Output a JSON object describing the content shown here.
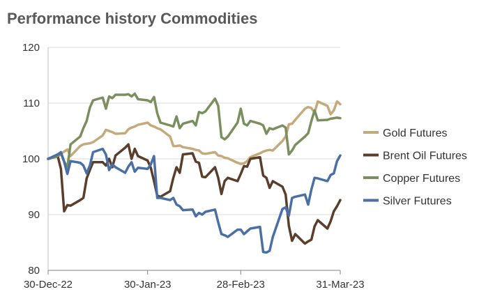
{
  "chart_data": {
    "type": "line",
    "title": "Performance history Commodities",
    "xlabel": "",
    "ylabel": "",
    "ylim": [
      80,
      120
    ],
    "yticks": [
      "80",
      "90",
      "100",
      "110",
      "120"
    ],
    "xlim": [
      "2022-12-30",
      "2023-03-31"
    ],
    "xticks": [
      {
        "date": "2022-12-30",
        "label": "30-Dec-22"
      },
      {
        "date": "2023-01-30",
        "label": "30-Jan-23"
      },
      {
        "date": "2023-02-28",
        "label": "28-Feb-23"
      },
      {
        "date": "2023-03-31",
        "label": "31-Mar-23"
      }
    ],
    "grid": "horizontal",
    "legend_position": "right",
    "series": [
      {
        "name": "Gold Futures",
        "color": "#c4aa7a",
        "points": [
          [
            "2022-12-30",
            100.0
          ],
          [
            "2023-01-02",
            100.4
          ],
          [
            "2023-01-03",
            100.9
          ],
          [
            "2023-01-04",
            101.3
          ],
          [
            "2023-01-05",
            101.7
          ],
          [
            "2023-01-06",
            100.5
          ],
          [
            "2023-01-09",
            102.3
          ],
          [
            "2023-01-10",
            102.6
          ],
          [
            "2023-01-11",
            102.7
          ],
          [
            "2023-01-12",
            102.8
          ],
          [
            "2023-01-13",
            103.0
          ],
          [
            "2023-01-16",
            104.2
          ],
          [
            "2023-01-17",
            105.2
          ],
          [
            "2023-01-18",
            105.0
          ],
          [
            "2023-01-19",
            104.8
          ],
          [
            "2023-01-20",
            104.5
          ],
          [
            "2023-01-23",
            104.6
          ],
          [
            "2023-01-24",
            105.3
          ],
          [
            "2023-01-25",
            105.6
          ],
          [
            "2023-01-26",
            105.8
          ],
          [
            "2023-01-27",
            106.1
          ],
          [
            "2023-01-30",
            106.5
          ],
          [
            "2023-01-31",
            106.0
          ],
          [
            "2023-02-01",
            105.8
          ],
          [
            "2023-02-02",
            105.5
          ],
          [
            "2023-02-03",
            105.3
          ],
          [
            "2023-02-06",
            104.0
          ],
          [
            "2023-02-07",
            102.3
          ],
          [
            "2023-02-08",
            102.3
          ],
          [
            "2023-02-09",
            102.4
          ],
          [
            "2023-02-10",
            102.1
          ],
          [
            "2023-02-13",
            101.8
          ],
          [
            "2023-02-14",
            101.6
          ],
          [
            "2023-02-15",
            101.5
          ],
          [
            "2023-02-16",
            101.0
          ],
          [
            "2023-02-17",
            100.9
          ],
          [
            "2023-02-20",
            101.2
          ],
          [
            "2023-02-21",
            100.6
          ],
          [
            "2023-02-22",
            100.5
          ],
          [
            "2023-02-23",
            100.2
          ],
          [
            "2023-02-24",
            100.1
          ],
          [
            "2023-02-27",
            99.3
          ],
          [
            "2023-02-28",
            99.1
          ],
          [
            "2023-03-01",
            99.2
          ],
          [
            "2023-03-02",
            99.6
          ],
          [
            "2023-03-03",
            100.3
          ],
          [
            "2023-03-06",
            101.0
          ],
          [
            "2023-03-07",
            101.3
          ],
          [
            "2023-03-08",
            101.5
          ],
          [
            "2023-03-09",
            101.6
          ],
          [
            "2023-03-10",
            101.5
          ],
          [
            "2023-03-13",
            103.2
          ],
          [
            "2023-03-14",
            104.0
          ],
          [
            "2023-03-15",
            106.2
          ],
          [
            "2023-03-16",
            106.3
          ],
          [
            "2023-03-17",
            107.0
          ],
          [
            "2023-03-20",
            109.0
          ],
          [
            "2023-03-21",
            109.3
          ],
          [
            "2023-03-22",
            109.1
          ],
          [
            "2023-03-23",
            108.3
          ],
          [
            "2023-03-24",
            110.3
          ],
          [
            "2023-03-27",
            109.5
          ],
          [
            "2023-03-28",
            108.0
          ],
          [
            "2023-03-29",
            108.7
          ],
          [
            "2023-03-30",
            110.3
          ],
          [
            "2023-03-31",
            109.8
          ]
        ]
      },
      {
        "name": "Brent Oil Futures",
        "color": "#5a3e2b",
        "points": [
          [
            "2022-12-30",
            100.0
          ],
          [
            "2023-01-02",
            100.5
          ],
          [
            "2023-01-03",
            98.2
          ],
          [
            "2023-01-04",
            90.6
          ],
          [
            "2023-01-05",
            91.7
          ],
          [
            "2023-01-06",
            91.6
          ],
          [
            "2023-01-09",
            92.6
          ],
          [
            "2023-01-10",
            93.0
          ],
          [
            "2023-01-11",
            96.5
          ],
          [
            "2023-01-12",
            98.0
          ],
          [
            "2023-01-13",
            99.4
          ],
          [
            "2023-01-16",
            99.4
          ],
          [
            "2023-01-17",
            98.8
          ],
          [
            "2023-01-18",
            100.0
          ],
          [
            "2023-01-19",
            98.5
          ],
          [
            "2023-01-20",
            100.6
          ],
          [
            "2023-01-23",
            102.0
          ],
          [
            "2023-01-24",
            102.6
          ],
          [
            "2023-01-25",
            100.0
          ],
          [
            "2023-01-26",
            101.8
          ],
          [
            "2023-01-27",
            100.5
          ],
          [
            "2023-01-30",
            99.7
          ],
          [
            "2023-01-31",
            98.4
          ],
          [
            "2023-02-01",
            96.0
          ],
          [
            "2023-02-02",
            93.4
          ],
          [
            "2023-02-03",
            93.2
          ],
          [
            "2023-02-06",
            94.2
          ],
          [
            "2023-02-07",
            96.6
          ],
          [
            "2023-02-08",
            98.5
          ],
          [
            "2023-02-09",
            97.5
          ],
          [
            "2023-02-10",
            100.8
          ],
          [
            "2023-02-13",
            101.0
          ],
          [
            "2023-02-14",
            99.5
          ],
          [
            "2023-02-15",
            99.3
          ],
          [
            "2023-02-16",
            96.8
          ],
          [
            "2023-02-17",
            96.7
          ],
          [
            "2023-02-20",
            98.5
          ],
          [
            "2023-02-21",
            96.6
          ],
          [
            "2023-02-22",
            93.7
          ],
          [
            "2023-02-23",
            96.0
          ],
          [
            "2023-02-24",
            96.6
          ],
          [
            "2023-02-27",
            96.0
          ],
          [
            "2023-02-28",
            97.3
          ],
          [
            "2023-03-01",
            98.7
          ],
          [
            "2023-03-02",
            98.6
          ],
          [
            "2023-03-03",
            100.0
          ],
          [
            "2023-03-06",
            100.3
          ],
          [
            "2023-03-07",
            97.0
          ],
          [
            "2023-03-08",
            96.6
          ],
          [
            "2023-03-09",
            94.8
          ],
          [
            "2023-03-10",
            96.0
          ],
          [
            "2023-03-13",
            95.0
          ],
          [
            "2023-03-14",
            93.6
          ],
          [
            "2023-03-15",
            88.0
          ],
          [
            "2023-03-16",
            85.3
          ],
          [
            "2023-03-17",
            86.5
          ],
          [
            "2023-03-20",
            84.8
          ],
          [
            "2023-03-21",
            85.2
          ],
          [
            "2023-03-22",
            85.5
          ],
          [
            "2023-03-23",
            87.9
          ],
          [
            "2023-03-24",
            89.0
          ],
          [
            "2023-03-27",
            87.5
          ],
          [
            "2023-03-28",
            88.8
          ],
          [
            "2023-03-29",
            90.6
          ],
          [
            "2023-03-30",
            91.5
          ],
          [
            "2023-03-31",
            92.6
          ]
        ]
      },
      {
        "name": "Copper Futures",
        "color": "#7b8f5e",
        "points": [
          [
            "2022-12-30",
            100.0
          ],
          [
            "2023-01-02",
            100.5
          ],
          [
            "2023-01-03",
            101.0
          ],
          [
            "2023-01-04",
            99.5
          ],
          [
            "2023-01-05",
            98.5
          ],
          [
            "2023-01-06",
            102.6
          ],
          [
            "2023-01-09",
            104.0
          ],
          [
            "2023-01-10",
            105.5
          ],
          [
            "2023-01-11",
            106.8
          ],
          [
            "2023-01-12",
            109.2
          ],
          [
            "2023-01-13",
            110.5
          ],
          [
            "2023-01-16",
            111.0
          ],
          [
            "2023-01-17",
            109.0
          ],
          [
            "2023-01-18",
            111.2
          ],
          [
            "2023-01-19",
            110.9
          ],
          [
            "2023-01-20",
            111.5
          ],
          [
            "2023-01-23",
            111.5
          ],
          [
            "2023-01-24",
            111.6
          ],
          [
            "2023-01-25",
            111.2
          ],
          [
            "2023-01-26",
            111.7
          ],
          [
            "2023-01-27",
            110.7
          ],
          [
            "2023-01-30",
            110.5
          ],
          [
            "2023-01-31",
            110.2
          ],
          [
            "2023-02-01",
            111.1
          ],
          [
            "2023-02-02",
            108.2
          ],
          [
            "2023-02-03",
            106.5
          ],
          [
            "2023-02-06",
            106.0
          ],
          [
            "2023-02-07",
            105.8
          ],
          [
            "2023-02-08",
            107.6
          ],
          [
            "2023-02-09",
            105.5
          ],
          [
            "2023-02-10",
            106.3
          ],
          [
            "2023-02-13",
            106.8
          ],
          [
            "2023-02-14",
            106.0
          ],
          [
            "2023-02-15",
            108.4
          ],
          [
            "2023-02-16",
            108.2
          ],
          [
            "2023-02-17",
            108.5
          ],
          [
            "2023-02-20",
            110.8
          ],
          [
            "2023-02-21",
            109.5
          ],
          [
            "2023-02-22",
            103.9
          ],
          [
            "2023-02-23",
            103.5
          ],
          [
            "2023-02-24",
            104.0
          ],
          [
            "2023-02-27",
            106.5
          ],
          [
            "2023-02-28",
            109.0
          ],
          [
            "2023-03-01",
            106.3
          ],
          [
            "2023-03-02",
            106.0
          ],
          [
            "2023-03-03",
            106.8
          ],
          [
            "2023-03-06",
            106.3
          ],
          [
            "2023-03-07",
            106.0
          ],
          [
            "2023-03-08",
            104.5
          ],
          [
            "2023-03-09",
            105.5
          ],
          [
            "2023-03-10",
            105.3
          ],
          [
            "2023-03-13",
            106.0
          ],
          [
            "2023-03-14",
            105.6
          ],
          [
            "2023-03-15",
            100.8
          ],
          [
            "2023-03-16",
            101.5
          ],
          [
            "2023-03-17",
            102.5
          ],
          [
            "2023-03-20",
            104.0
          ],
          [
            "2023-03-21",
            104.6
          ],
          [
            "2023-03-22",
            106.8
          ],
          [
            "2023-03-23",
            108.7
          ],
          [
            "2023-03-24",
            106.9
          ],
          [
            "2023-03-27",
            107.0
          ],
          [
            "2023-03-28",
            107.2
          ],
          [
            "2023-03-29",
            107.3
          ],
          [
            "2023-03-30",
            107.4
          ],
          [
            "2023-03-31",
            107.3
          ]
        ]
      },
      {
        "name": "Silver Futures",
        "color": "#4a6fa5",
        "points": [
          [
            "2022-12-30",
            100.0
          ],
          [
            "2023-01-02",
            100.8
          ],
          [
            "2023-01-03",
            101.2
          ],
          [
            "2023-01-04",
            99.5
          ],
          [
            "2023-01-05",
            97.3
          ],
          [
            "2023-01-06",
            99.6
          ],
          [
            "2023-01-09",
            99.3
          ],
          [
            "2023-01-10",
            98.8
          ],
          [
            "2023-01-11",
            97.4
          ],
          [
            "2023-01-12",
            98.8
          ],
          [
            "2023-01-13",
            101.2
          ],
          [
            "2023-01-16",
            101.8
          ],
          [
            "2023-01-17",
            100.8
          ],
          [
            "2023-01-18",
            98.0
          ],
          [
            "2023-01-19",
            99.0
          ],
          [
            "2023-01-20",
            98.5
          ],
          [
            "2023-01-23",
            97.5
          ],
          [
            "2023-01-24",
            98.6
          ],
          [
            "2023-01-25",
            99.4
          ],
          [
            "2023-01-26",
            97.7
          ],
          [
            "2023-01-27",
            98.4
          ],
          [
            "2023-01-30",
            98.2
          ],
          [
            "2023-01-31",
            99.0
          ],
          [
            "2023-02-01",
            100.5
          ],
          [
            "2023-02-02",
            93.0
          ],
          [
            "2023-02-03",
            93.0
          ],
          [
            "2023-02-06",
            92.6
          ],
          [
            "2023-02-07",
            93.0
          ],
          [
            "2023-02-08",
            91.8
          ],
          [
            "2023-02-09",
            91.5
          ],
          [
            "2023-02-10",
            90.8
          ],
          [
            "2023-02-13",
            90.9
          ],
          [
            "2023-02-14",
            89.7
          ],
          [
            "2023-02-15",
            90.3
          ],
          [
            "2023-02-16",
            90.0
          ],
          [
            "2023-02-17",
            90.5
          ],
          [
            "2023-02-20",
            90.9
          ],
          [
            "2023-02-21",
            88.6
          ],
          [
            "2023-02-22",
            86.5
          ],
          [
            "2023-02-23",
            86.3
          ],
          [
            "2023-02-24",
            86.0
          ],
          [
            "2023-02-27",
            87.3
          ],
          [
            "2023-02-28",
            87.3
          ],
          [
            "2023-03-01",
            86.5
          ],
          [
            "2023-03-02",
            87.0
          ],
          [
            "2023-03-03",
            87.5
          ],
          [
            "2023-03-06",
            87.8
          ],
          [
            "2023-03-07",
            83.3
          ],
          [
            "2023-03-08",
            83.2
          ],
          [
            "2023-03-09",
            83.5
          ],
          [
            "2023-03-10",
            86.0
          ],
          [
            "2023-03-13",
            91.0
          ],
          [
            "2023-03-14",
            91.3
          ],
          [
            "2023-03-15",
            89.8
          ],
          [
            "2023-03-16",
            93.0
          ],
          [
            "2023-03-17",
            93.2
          ],
          [
            "2023-03-20",
            93.6
          ],
          [
            "2023-03-21",
            91.8
          ],
          [
            "2023-03-22",
            94.5
          ],
          [
            "2023-03-23",
            96.6
          ],
          [
            "2023-03-24",
            96.5
          ],
          [
            "2023-03-27",
            96.0
          ],
          [
            "2023-03-28",
            97.1
          ],
          [
            "2023-03-29",
            97.4
          ],
          [
            "2023-03-30",
            99.6
          ],
          [
            "2023-03-31",
            100.6
          ]
        ]
      }
    ]
  }
}
